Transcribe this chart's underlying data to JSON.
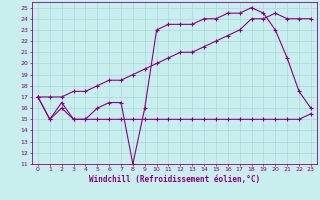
{
  "xlabel": "Windchill (Refroidissement éolien,°C)",
  "background_color": "#c8eeee",
  "grid_color": "#a8d8d8",
  "line_color": "#8B008B",
  "xlim": [
    -0.5,
    23.5
  ],
  "ylim": [
    11,
    25.5
  ],
  "yticks": [
    11,
    12,
    13,
    14,
    15,
    16,
    17,
    18,
    19,
    20,
    21,
    22,
    23,
    24,
    25
  ],
  "xticks": [
    0,
    1,
    2,
    3,
    4,
    5,
    6,
    7,
    8,
    9,
    10,
    11,
    12,
    13,
    14,
    15,
    16,
    17,
    18,
    19,
    20,
    21,
    22,
    23
  ],
  "line1_x": [
    0,
    1,
    2,
    3,
    4,
    5,
    6,
    7,
    8,
    9,
    10,
    11,
    12,
    13,
    14,
    15,
    16,
    17,
    18,
    19,
    20,
    21,
    22,
    23
  ],
  "line1_y": [
    17,
    15,
    16.5,
    15,
    15,
    16,
    16.5,
    16.5,
    11,
    16,
    23,
    23.5,
    23.5,
    23.5,
    24,
    24,
    24.5,
    24.5,
    25,
    24.5,
    23,
    20.5,
    17.5,
    16
  ],
  "line2_x": [
    0,
    1,
    2,
    3,
    4,
    5,
    6,
    7,
    8,
    9,
    10,
    11,
    12,
    13,
    14,
    15,
    16,
    17,
    18,
    19,
    20,
    21,
    22,
    23
  ],
  "line2_y": [
    17,
    15,
    16,
    15,
    15,
    15,
    15,
    15,
    15,
    15,
    15,
    15,
    15,
    15,
    15,
    15,
    15,
    15,
    15,
    15,
    15,
    15,
    15,
    15.5
  ],
  "line3_x": [
    0,
    1,
    2,
    3,
    4,
    5,
    6,
    7,
    8,
    9,
    10,
    11,
    12,
    13,
    14,
    15,
    16,
    17,
    18,
    19,
    20,
    21,
    22,
    23
  ],
  "line3_y": [
    17,
    17,
    17,
    17.5,
    17.5,
    18,
    18.5,
    18.5,
    19,
    19.5,
    20,
    20.5,
    21,
    21,
    21.5,
    22,
    22.5,
    23,
    24,
    24,
    24.5,
    24,
    24,
    24
  ]
}
